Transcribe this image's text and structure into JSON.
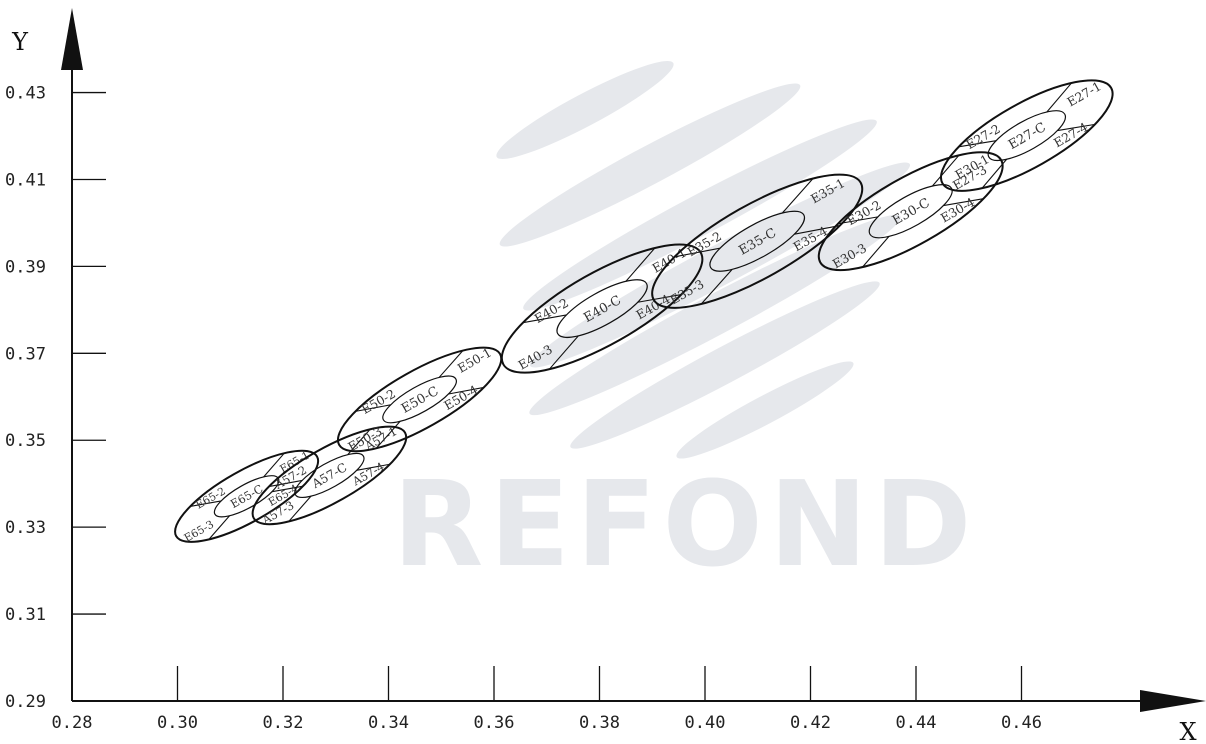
{
  "watermark": {
    "text": "REFOND"
  },
  "chart_data": {
    "type": "scatter",
    "title": "",
    "xlabel": "X",
    "ylabel": "Y",
    "xlim": [
      0.28,
      0.48
    ],
    "ylim": [
      0.29,
      0.44
    ],
    "x_ticks": [
      0.28,
      0.3,
      0.32,
      0.34,
      0.36,
      0.38,
      0.4,
      0.42,
      0.44,
      0.46
    ],
    "x_tick_labels": [
      "0.28",
      "0.30",
      "0.32",
      "0.34",
      "0.36",
      "0.38",
      "0.40",
      "0.42",
      "0.44",
      "0.46"
    ],
    "y_ticks": [
      0.29,
      0.31,
      0.33,
      0.35,
      0.37,
      0.39,
      0.41,
      0.43
    ],
    "y_tick_labels": [
      "0.29",
      "0.31",
      "0.33",
      "0.35",
      "0.37",
      "0.39",
      "0.41",
      "0.43"
    ],
    "grid": false,
    "colors": {
      "axis": "#111111",
      "ellipse": "#111111",
      "watermark": "#e6e8ec"
    },
    "bins": [
      {
        "center": [
          0.3131,
          0.3371
        ],
        "semi_major": 0.0162,
        "semi_minor": 0.0051,
        "inner_scale": 0.45,
        "labels": {
          "c": "E65-C",
          "q1": "E65-1",
          "q2": "E65-2",
          "q3": "E65-3",
          "q4": "E65-4"
        }
      },
      {
        "center": [
          0.3288,
          0.3419
        ],
        "semi_major": 0.0174,
        "semi_minor": 0.0054,
        "inner_scale": 0.45,
        "labels": {
          "c": "A57-C",
          "q1": "A57-1",
          "q2": "A57-2",
          "q3": "A57-3",
          "q4": "A57-4"
        }
      },
      {
        "center": [
          0.3459,
          0.3594
        ],
        "semi_major": 0.0185,
        "semi_minor": 0.0057,
        "inner_scale": 0.45,
        "labels": {
          "c": "E50-C",
          "q1": "E50-1",
          "q2": "E50-2",
          "q3": "E50-3",
          "q4": "E50-4"
        }
      },
      {
        "center": [
          0.3805,
          0.3803
        ],
        "semi_major": 0.0227,
        "semi_minor": 0.0072,
        "inner_scale": 0.45,
        "labels": {
          "c": "E40-C",
          "q1": "E40-1",
          "q2": "E40-2",
          "q3": "E40-3",
          "q4": "E40-4"
        }
      },
      {
        "center": [
          0.4099,
          0.3958
        ],
        "semi_major": 0.0238,
        "semi_minor": 0.0073,
        "inner_scale": 0.45,
        "labels": {
          "c": "E35-C",
          "q1": "E35-1",
          "q2": "E35-2",
          "q3": "E35-3",
          "q4": "E35-4"
        }
      },
      {
        "center": [
          0.439,
          0.4027
        ],
        "semi_major": 0.0208,
        "semi_minor": 0.0067,
        "inner_scale": 0.45,
        "labels": {
          "c": "E30-C",
          "q1": "E30-1",
          "q2": "E30-2",
          "q3": "E30-3",
          "q4": "E30-4"
        }
      },
      {
        "center": [
          0.461,
          0.4201
        ],
        "semi_major": 0.0194,
        "semi_minor": 0.0064,
        "inner_scale": 0.45,
        "labels": {
          "c": "E27-C",
          "q1": "E27-1",
          "q2": "E27-2",
          "q3": "E27-3",
          "q4": "E27-4"
        }
      }
    ]
  }
}
